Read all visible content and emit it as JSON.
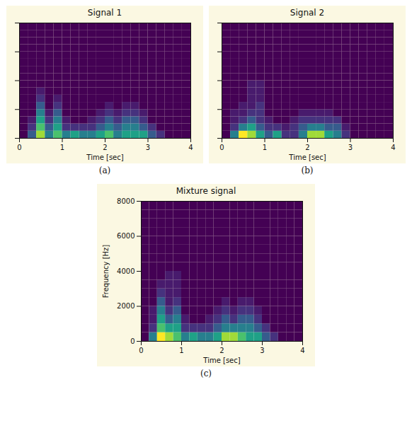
{
  "chart_data": [
    {
      "type": "heatmap",
      "title": "Signal 1",
      "caption": "(a)",
      "x_label": "Time [sec]",
      "xlim": [
        0,
        4
      ],
      "ylim": [
        0,
        8000
      ],
      "xticks": [
        0,
        1,
        2,
        3,
        4
      ],
      "yticks": [
        0,
        2000,
        4000,
        6000,
        8000
      ],
      "tick_labels": "x",
      "color": "viridis",
      "time_bins": [
        0,
        0.2,
        0.4,
        0.6,
        0.8,
        1.0,
        1.2,
        1.4,
        1.6,
        1.8,
        2.0,
        2.2,
        2.4,
        2.6,
        2.8,
        3.0,
        3.2,
        3.4,
        3.6,
        3.8,
        4.0
      ],
      "freq_bins": [
        0,
        500,
        1000,
        1500,
        2000,
        2500,
        3000,
        3500,
        4000,
        4500,
        5000,
        5500,
        6000,
        6500,
        7000,
        7500,
        8000
      ],
      "cells": [
        [
          0,
          0.2,
          0.6,
          0.3,
          0.5,
          0.3,
          0.4,
          0.3,
          0.3,
          0.4,
          0.5,
          0.3,
          0.4,
          0.4,
          0.4,
          0.2,
          0.1,
          0,
          0,
          0
        ],
        [
          0,
          0.1,
          0.5,
          0.2,
          0.4,
          0.1,
          0.1,
          0.1,
          0.1,
          0.2,
          0.3,
          0.2,
          0.3,
          0.3,
          0.2,
          0.1,
          0,
          0,
          0,
          0
        ],
        [
          0,
          0.05,
          0.4,
          0.1,
          0.3,
          0.05,
          0,
          0,
          0.05,
          0.1,
          0.2,
          0.1,
          0.2,
          0.2,
          0.1,
          0,
          0,
          0,
          0,
          0
        ],
        [
          0,
          0,
          0.3,
          0.05,
          0.2,
          0,
          0,
          0,
          0,
          0.05,
          0.1,
          0.05,
          0.1,
          0.1,
          0.05,
          0,
          0,
          0,
          0,
          0
        ],
        [
          0,
          0,
          0.2,
          0,
          0.1,
          0,
          0,
          0,
          0,
          0,
          0.05,
          0,
          0.05,
          0.05,
          0,
          0,
          0,
          0,
          0,
          0
        ],
        [
          0,
          0,
          0.1,
          0,
          0.05,
          0,
          0,
          0,
          0,
          0,
          0,
          0,
          0,
          0,
          0,
          0,
          0,
          0,
          0,
          0
        ],
        [
          0,
          0,
          0.05,
          0,
          0,
          0,
          0,
          0,
          0,
          0,
          0,
          0,
          0,
          0,
          0,
          0,
          0,
          0,
          0,
          0
        ],
        [
          0,
          0,
          0,
          0,
          0,
          0,
          0,
          0,
          0,
          0,
          0,
          0,
          0,
          0,
          0,
          0,
          0,
          0,
          0,
          0
        ],
        [
          0,
          0,
          0,
          0,
          0,
          0,
          0,
          0,
          0,
          0,
          0,
          0,
          0,
          0,
          0,
          0,
          0,
          0,
          0,
          0
        ],
        [
          0,
          0,
          0,
          0,
          0,
          0,
          0,
          0,
          0,
          0,
          0,
          0,
          0,
          0,
          0,
          0,
          0,
          0,
          0,
          0
        ],
        [
          0,
          0,
          0,
          0,
          0,
          0,
          0,
          0,
          0,
          0,
          0,
          0,
          0,
          0,
          0,
          0,
          0,
          0,
          0,
          0
        ],
        [
          0,
          0,
          0,
          0,
          0,
          0,
          0,
          0,
          0,
          0,
          0,
          0,
          0,
          0,
          0,
          0,
          0,
          0,
          0,
          0
        ],
        [
          0,
          0,
          0,
          0,
          0,
          0,
          0,
          0,
          0,
          0,
          0,
          0,
          0,
          0,
          0,
          0,
          0,
          0,
          0,
          0
        ],
        [
          0,
          0,
          0,
          0,
          0,
          0,
          0,
          0,
          0,
          0,
          0,
          0,
          0,
          0,
          0,
          0,
          0,
          0,
          0,
          0
        ],
        [
          0,
          0,
          0,
          0,
          0,
          0,
          0,
          0,
          0,
          0,
          0,
          0,
          0,
          0,
          0,
          0,
          0,
          0,
          0,
          0
        ],
        [
          0,
          0,
          0,
          0,
          0,
          0,
          0,
          0,
          0,
          0,
          0,
          0,
          0,
          0,
          0,
          0,
          0,
          0,
          0,
          0
        ]
      ]
    },
    {
      "type": "heatmap",
      "title": "Signal 2",
      "caption": "(b)",
      "x_label": "Time [sec]",
      "xlim": [
        0,
        4
      ],
      "ylim": [
        0,
        8000
      ],
      "xticks": [
        0,
        1,
        2,
        3,
        4
      ],
      "yticks": [
        0,
        2000,
        4000,
        6000,
        8000
      ],
      "tick_labels": "x",
      "color": "viridis",
      "time_bins": [
        0,
        0.2,
        0.4,
        0.6,
        0.8,
        1.0,
        1.2,
        1.4,
        1.6,
        1.8,
        2.0,
        2.2,
        2.4,
        2.6,
        2.8,
        3.0,
        3.2,
        3.4,
        3.6,
        3.8,
        4.0
      ],
      "freq_bins": [
        0,
        500,
        1000,
        1500,
        2000,
        2500,
        3000,
        3500,
        4000,
        4500,
        5000,
        5500,
        6000,
        6500,
        7000,
        7500,
        8000
      ],
      "cells": [
        [
          0,
          0.3,
          0.7,
          0.6,
          0.4,
          0.2,
          0.4,
          0.1,
          0.1,
          0.3,
          0.6,
          0.6,
          0.4,
          0.3,
          0.1,
          0,
          0,
          0,
          0,
          0
        ],
        [
          0,
          0.1,
          0.3,
          0.4,
          0.2,
          0.1,
          0.1,
          0.05,
          0.1,
          0.2,
          0.3,
          0.3,
          0.2,
          0.2,
          0.05,
          0,
          0,
          0,
          0,
          0
        ],
        [
          0,
          0.05,
          0.1,
          0.2,
          0.1,
          0.05,
          0,
          0,
          0.05,
          0.1,
          0.1,
          0.1,
          0.1,
          0.1,
          0,
          0,
          0,
          0,
          0,
          0
        ],
        [
          0,
          0.05,
          0.05,
          0.1,
          0.1,
          0,
          0,
          0,
          0,
          0.05,
          0.05,
          0.05,
          0.05,
          0,
          0,
          0,
          0,
          0,
          0,
          0
        ],
        [
          0,
          0,
          0.05,
          0.05,
          0.1,
          0,
          0,
          0,
          0,
          0,
          0,
          0,
          0,
          0,
          0,
          0,
          0,
          0,
          0,
          0
        ],
        [
          0,
          0,
          0,
          0.05,
          0.05,
          0,
          0,
          0,
          0,
          0,
          0,
          0,
          0,
          0,
          0,
          0,
          0,
          0,
          0,
          0
        ],
        [
          0,
          0,
          0,
          0.05,
          0.05,
          0,
          0,
          0,
          0,
          0,
          0,
          0,
          0,
          0,
          0,
          0,
          0,
          0,
          0,
          0
        ],
        [
          0,
          0,
          0,
          0.05,
          0.05,
          0,
          0,
          0,
          0,
          0,
          0,
          0,
          0,
          0,
          0,
          0,
          0,
          0,
          0,
          0
        ],
        [
          0,
          0,
          0,
          0,
          0,
          0,
          0,
          0,
          0,
          0,
          0,
          0,
          0,
          0,
          0,
          0,
          0,
          0,
          0,
          0
        ],
        [
          0,
          0,
          0,
          0,
          0,
          0,
          0,
          0,
          0,
          0,
          0,
          0,
          0,
          0,
          0,
          0,
          0,
          0,
          0,
          0
        ],
        [
          0,
          0,
          0,
          0,
          0,
          0,
          0,
          0,
          0,
          0,
          0,
          0,
          0,
          0,
          0,
          0,
          0,
          0,
          0,
          0
        ],
        [
          0,
          0,
          0,
          0,
          0,
          0,
          0,
          0,
          0,
          0,
          0,
          0,
          0,
          0,
          0,
          0,
          0,
          0,
          0,
          0
        ],
        [
          0,
          0,
          0,
          0,
          0,
          0,
          0,
          0,
          0,
          0,
          0,
          0,
          0,
          0,
          0,
          0,
          0,
          0,
          0,
          0
        ],
        [
          0,
          0,
          0,
          0,
          0,
          0,
          0,
          0,
          0,
          0,
          0,
          0,
          0,
          0,
          0,
          0,
          0,
          0,
          0,
          0
        ],
        [
          0,
          0,
          0,
          0,
          0,
          0,
          0,
          0,
          0,
          0,
          0,
          0,
          0,
          0,
          0,
          0,
          0,
          0,
          0,
          0
        ],
        [
          0,
          0,
          0,
          0,
          0,
          0,
          0,
          0,
          0,
          0,
          0,
          0,
          0,
          0,
          0,
          0,
          0,
          0,
          0,
          0
        ]
      ]
    },
    {
      "type": "heatmap",
      "title": "Mixture signal",
      "caption": "(c)",
      "x_label": "Time [sec]",
      "y_label": "Frequency [Hz]",
      "xlim": [
        0,
        4
      ],
      "ylim": [
        0,
        8000
      ],
      "xticks": [
        0,
        1,
        2,
        3,
        4
      ],
      "yticks": [
        0,
        2000,
        4000,
        6000,
        8000
      ],
      "color": "viridis",
      "time_bins": [
        0,
        0.2,
        0.4,
        0.6,
        0.8,
        1.0,
        1.2,
        1.4,
        1.6,
        1.8,
        2.0,
        2.2,
        2.4,
        2.6,
        2.8,
        3.0,
        3.2,
        3.4,
        3.6,
        3.8,
        4.0
      ],
      "freq_bins": [
        0,
        500,
        1000,
        1500,
        2000,
        2500,
        3000,
        3500,
        4000,
        4500,
        5000,
        5500,
        6000,
        6500,
        7000,
        7500,
        8000
      ],
      "cells": [
        [
          0,
          0.3,
          0.7,
          0.6,
          0.5,
          0.3,
          0.4,
          0.3,
          0.3,
          0.4,
          0.6,
          0.6,
          0.5,
          0.4,
          0.4,
          0.2,
          0.1,
          0,
          0,
          0
        ],
        [
          0,
          0.1,
          0.5,
          0.4,
          0.4,
          0.1,
          0.1,
          0.1,
          0.1,
          0.2,
          0.3,
          0.3,
          0.3,
          0.3,
          0.2,
          0.1,
          0,
          0,
          0,
          0
        ],
        [
          0,
          0.05,
          0.4,
          0.2,
          0.3,
          0.05,
          0,
          0,
          0.05,
          0.1,
          0.2,
          0.1,
          0.2,
          0.2,
          0.1,
          0,
          0,
          0,
          0,
          0
        ],
        [
          0,
          0.05,
          0.3,
          0.1,
          0.2,
          0,
          0,
          0,
          0,
          0.05,
          0.1,
          0.05,
          0.1,
          0.1,
          0.05,
          0,
          0,
          0,
          0,
          0
        ],
        [
          0,
          0,
          0.2,
          0.05,
          0.1,
          0,
          0,
          0,
          0,
          0,
          0.05,
          0,
          0.05,
          0.05,
          0,
          0,
          0,
          0,
          0,
          0
        ],
        [
          0,
          0,
          0.1,
          0.05,
          0.05,
          0,
          0,
          0,
          0,
          0,
          0,
          0,
          0,
          0,
          0,
          0,
          0,
          0,
          0,
          0
        ],
        [
          0,
          0,
          0.05,
          0.05,
          0.05,
          0,
          0,
          0,
          0,
          0,
          0,
          0,
          0,
          0,
          0,
          0,
          0,
          0,
          0,
          0
        ],
        [
          0,
          0,
          0,
          0.05,
          0.05,
          0,
          0,
          0,
          0,
          0,
          0,
          0,
          0,
          0,
          0,
          0,
          0,
          0,
          0,
          0
        ],
        [
          0,
          0,
          0,
          0,
          0,
          0,
          0,
          0,
          0,
          0,
          0,
          0,
          0,
          0,
          0,
          0,
          0,
          0,
          0,
          0
        ],
        [
          0,
          0,
          0,
          0,
          0,
          0,
          0,
          0,
          0,
          0,
          0,
          0,
          0,
          0,
          0,
          0,
          0,
          0,
          0,
          0
        ],
        [
          0,
          0,
          0,
          0,
          0,
          0,
          0,
          0,
          0,
          0,
          0,
          0,
          0,
          0,
          0,
          0,
          0,
          0,
          0,
          0
        ],
        [
          0,
          0,
          0,
          0,
          0,
          0,
          0,
          0,
          0,
          0,
          0,
          0,
          0,
          0,
          0,
          0,
          0,
          0,
          0,
          0
        ],
        [
          0,
          0,
          0,
          0,
          0,
          0,
          0,
          0,
          0,
          0,
          0,
          0,
          0,
          0,
          0,
          0,
          0,
          0,
          0,
          0
        ],
        [
          0,
          0,
          0,
          0,
          0,
          0,
          0,
          0,
          0,
          0,
          0,
          0,
          0,
          0,
          0,
          0,
          0,
          0,
          0,
          0
        ],
        [
          0,
          0,
          0,
          0,
          0,
          0,
          0,
          0,
          0,
          0,
          0,
          0,
          0,
          0,
          0,
          0,
          0,
          0,
          0,
          0
        ],
        [
          0,
          0,
          0,
          0,
          0,
          0,
          0,
          0,
          0,
          0,
          0,
          0,
          0,
          0,
          0,
          0,
          0,
          0,
          0,
          0
        ]
      ]
    }
  ]
}
